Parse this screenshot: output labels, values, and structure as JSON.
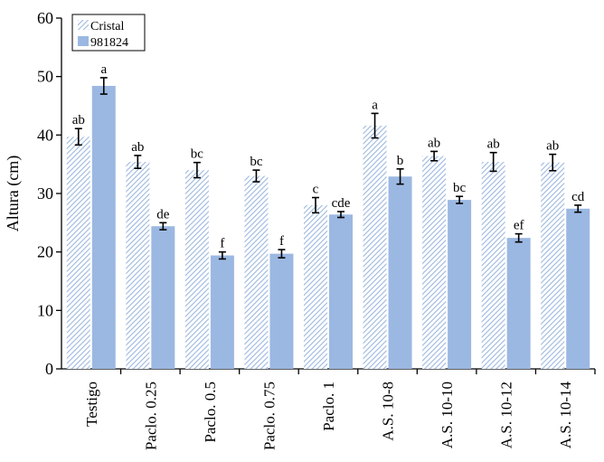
{
  "chart_data": {
    "type": "bar",
    "ylabel": "Altura (cm)",
    "xlabel": "",
    "ylim": [
      0,
      60
    ],
    "yticks": [
      0,
      10,
      20,
      30,
      40,
      50,
      60
    ],
    "grid": false,
    "legend_position": "top-left",
    "categories": [
      "Testigo",
      "Paclo. 0.25",
      "Paclo. 0.5",
      "Paclo. 0.75",
      "Paclo. 1",
      "A.S. 10-8",
      "A.S. 10-10",
      "A.S. 10-12",
      "A.S. 10-14"
    ],
    "series": [
      {
        "name": "Cristal",
        "pattern": "diagonal-hatch",
        "color": "#9db8de",
        "values": [
          39.7,
          35.4,
          34.0,
          33.0,
          28.0,
          41.6,
          36.4,
          35.4,
          35.3
        ],
        "errors": [
          1.4,
          1.1,
          1.3,
          1.0,
          1.3,
          2.1,
          0.8,
          1.6,
          1.4
        ],
        "labels": [
          "ab",
          "ab",
          "bc",
          "bc",
          "c",
          "a",
          "ab",
          "ab",
          "ab"
        ]
      },
      {
        "name": "981824",
        "pattern": "solid",
        "color": "#9bb8e2",
        "values": [
          48.4,
          24.4,
          19.4,
          19.7,
          26.4,
          32.9,
          28.9,
          22.4,
          27.4
        ],
        "errors": [
          1.4,
          0.6,
          0.6,
          0.7,
          0.5,
          1.3,
          0.6,
          0.7,
          0.6
        ],
        "labels": [
          "a",
          "de",
          "f",
          "f",
          "cde",
          "b",
          "bc",
          "ef",
          "cd"
        ]
      }
    ]
  }
}
